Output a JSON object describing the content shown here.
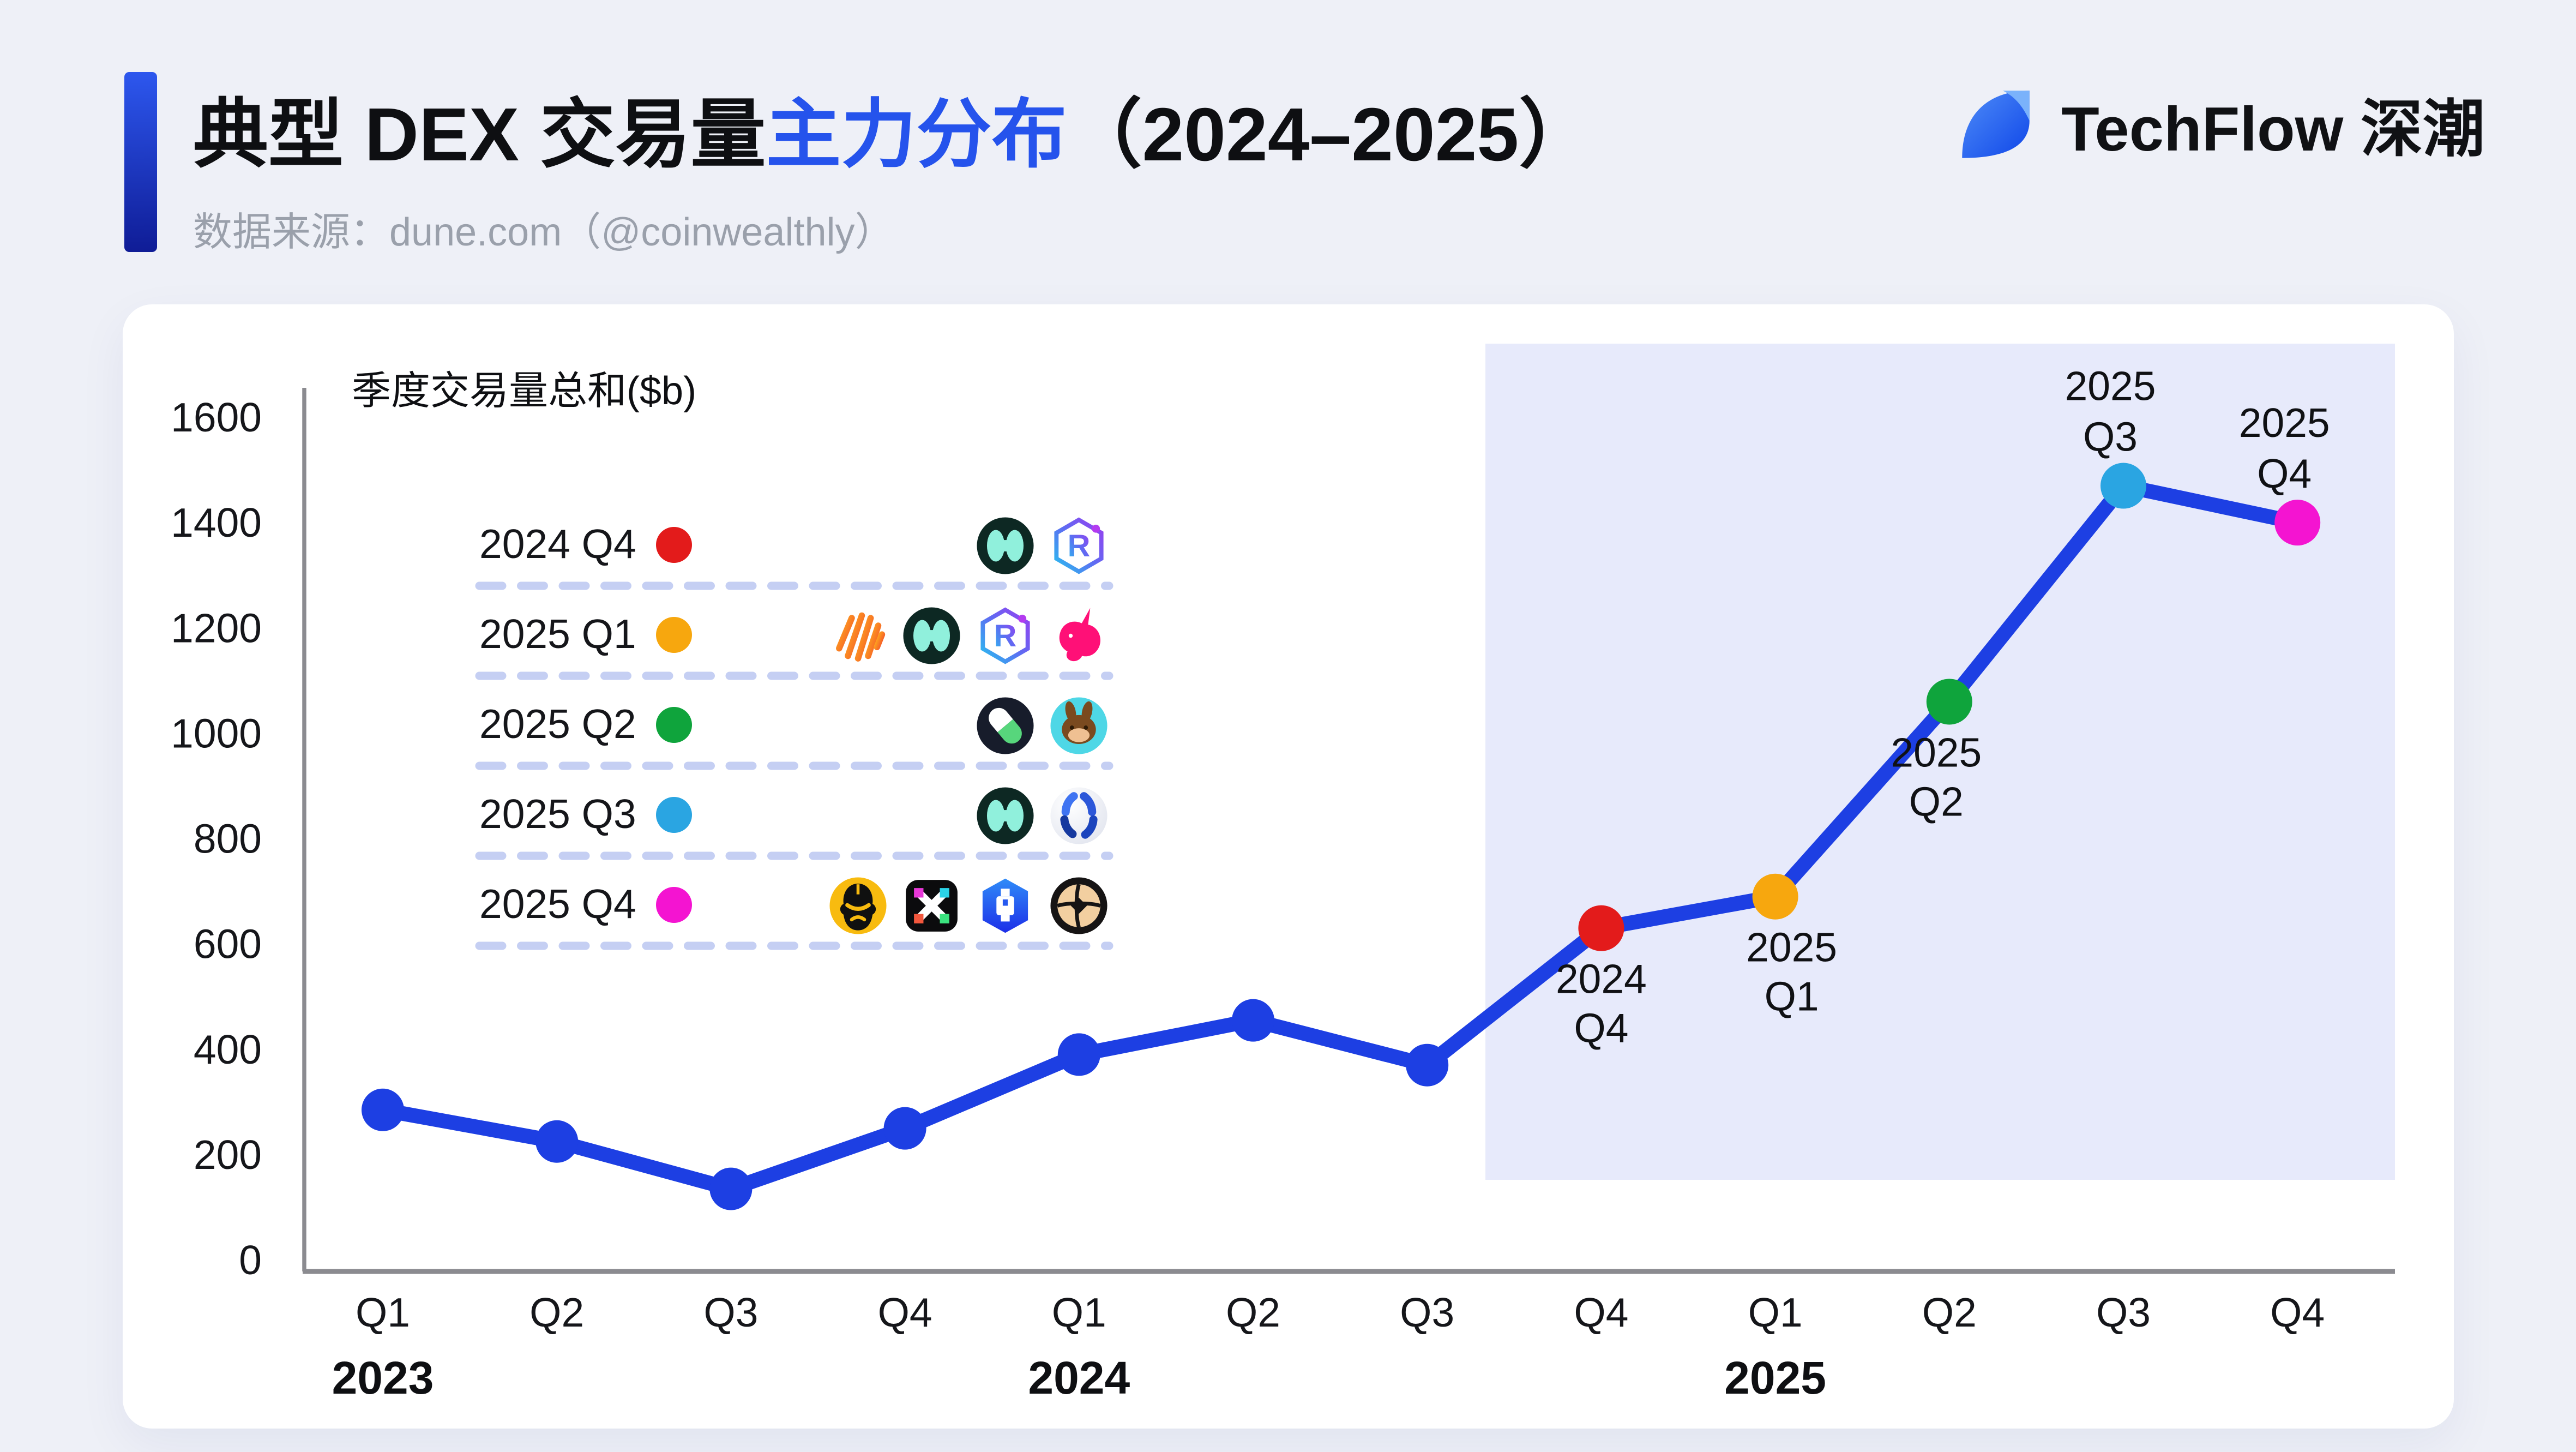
{
  "header": {
    "title_part1": "典型 DEX 交易量",
    "title_accent": "主力分布",
    "title_part2": "（2024–2025）",
    "subtitle": "数据来源：dune.com（@coinwealthly）",
    "brand": "TechFlow 深潮"
  },
  "colors": {
    "accent": "#2553ec",
    "line": "#1d3fe3",
    "highlight_bg": "#e7eafb",
    "dash": "#c5cff3",
    "axis": "#8b8b90",
    "red": "#e31b1b",
    "amber": "#f7a70e",
    "green": "#0fa43c",
    "cyan": "#2aa5e2",
    "magenta": "#f414d1"
  },
  "chart_data": {
    "type": "line",
    "title": "季度交易量总和($b)",
    "unit": "$b",
    "x_labels": [
      "Q1",
      "Q2",
      "Q3",
      "Q4",
      "Q1",
      "Q2",
      "Q3",
      "Q4",
      "Q1",
      "Q2",
      "Q3",
      "Q4"
    ],
    "years": [
      {
        "label": "2023",
        "at": 0
      },
      {
        "label": "2024",
        "at": 4
      },
      {
        "label": "2025",
        "at": 8
      }
    ],
    "values": [
      285,
      225,
      135,
      250,
      390,
      455,
      370,
      630,
      690,
      1060,
      1470,
      1400
    ],
    "ylim": [
      0,
      1600
    ],
    "yticks": [
      0,
      200,
      400,
      600,
      800,
      1000,
      1200,
      1400,
      1600
    ],
    "grid": false,
    "highlight_range": {
      "from": "2024 Q4",
      "to": "2025 Q4"
    },
    "points": [
      {
        "index": 7,
        "color": "#e31b1b",
        "label_lines": [
          "2024",
          "Q4"
        ],
        "label_side": "below",
        "label_dx": 0
      },
      {
        "index": 8,
        "color": "#f7a70e",
        "label_lines": [
          "2025",
          "Q1"
        ],
        "label_side": "below",
        "label_dx": 10
      },
      {
        "index": 9,
        "color": "#0fa43c",
        "label_lines": [
          "2025",
          "Q2"
        ],
        "label_side": "below",
        "label_dx": -8
      },
      {
        "index": 10,
        "color": "#2aa5e2",
        "label_lines": [
          "2025",
          "Q3"
        ],
        "label_side": "above",
        "label_dx": -8
      },
      {
        "index": 11,
        "color": "#f414d1",
        "label_lines": [
          "2025",
          "Q4"
        ],
        "label_side": "above",
        "label_dx": -8
      }
    ]
  },
  "legend": {
    "rows": [
      {
        "label": "2024 Q4",
        "color": "#e31b1b",
        "icons": [
          "hyperliquid",
          "raydium"
        ]
      },
      {
        "label": "2025 Q1",
        "color": "#f7a70e",
        "icons": [
          "meteora",
          "hyperliquid",
          "raydium",
          "uniswap"
        ]
      },
      {
        "label": "2025 Q2",
        "color": "#0fa43c",
        "icons": [
          "pumpfun",
          "pancakeswap"
        ]
      },
      {
        "label": "2025 Q3",
        "color": "#2aa5e2",
        "icons": [
          "hyperliquid",
          "grvt"
        ]
      },
      {
        "label": "2025 Q4",
        "color": "#f414d1",
        "icons": [
          "aster",
          "edgex",
          "lighter",
          "ostium"
        ]
      }
    ]
  }
}
